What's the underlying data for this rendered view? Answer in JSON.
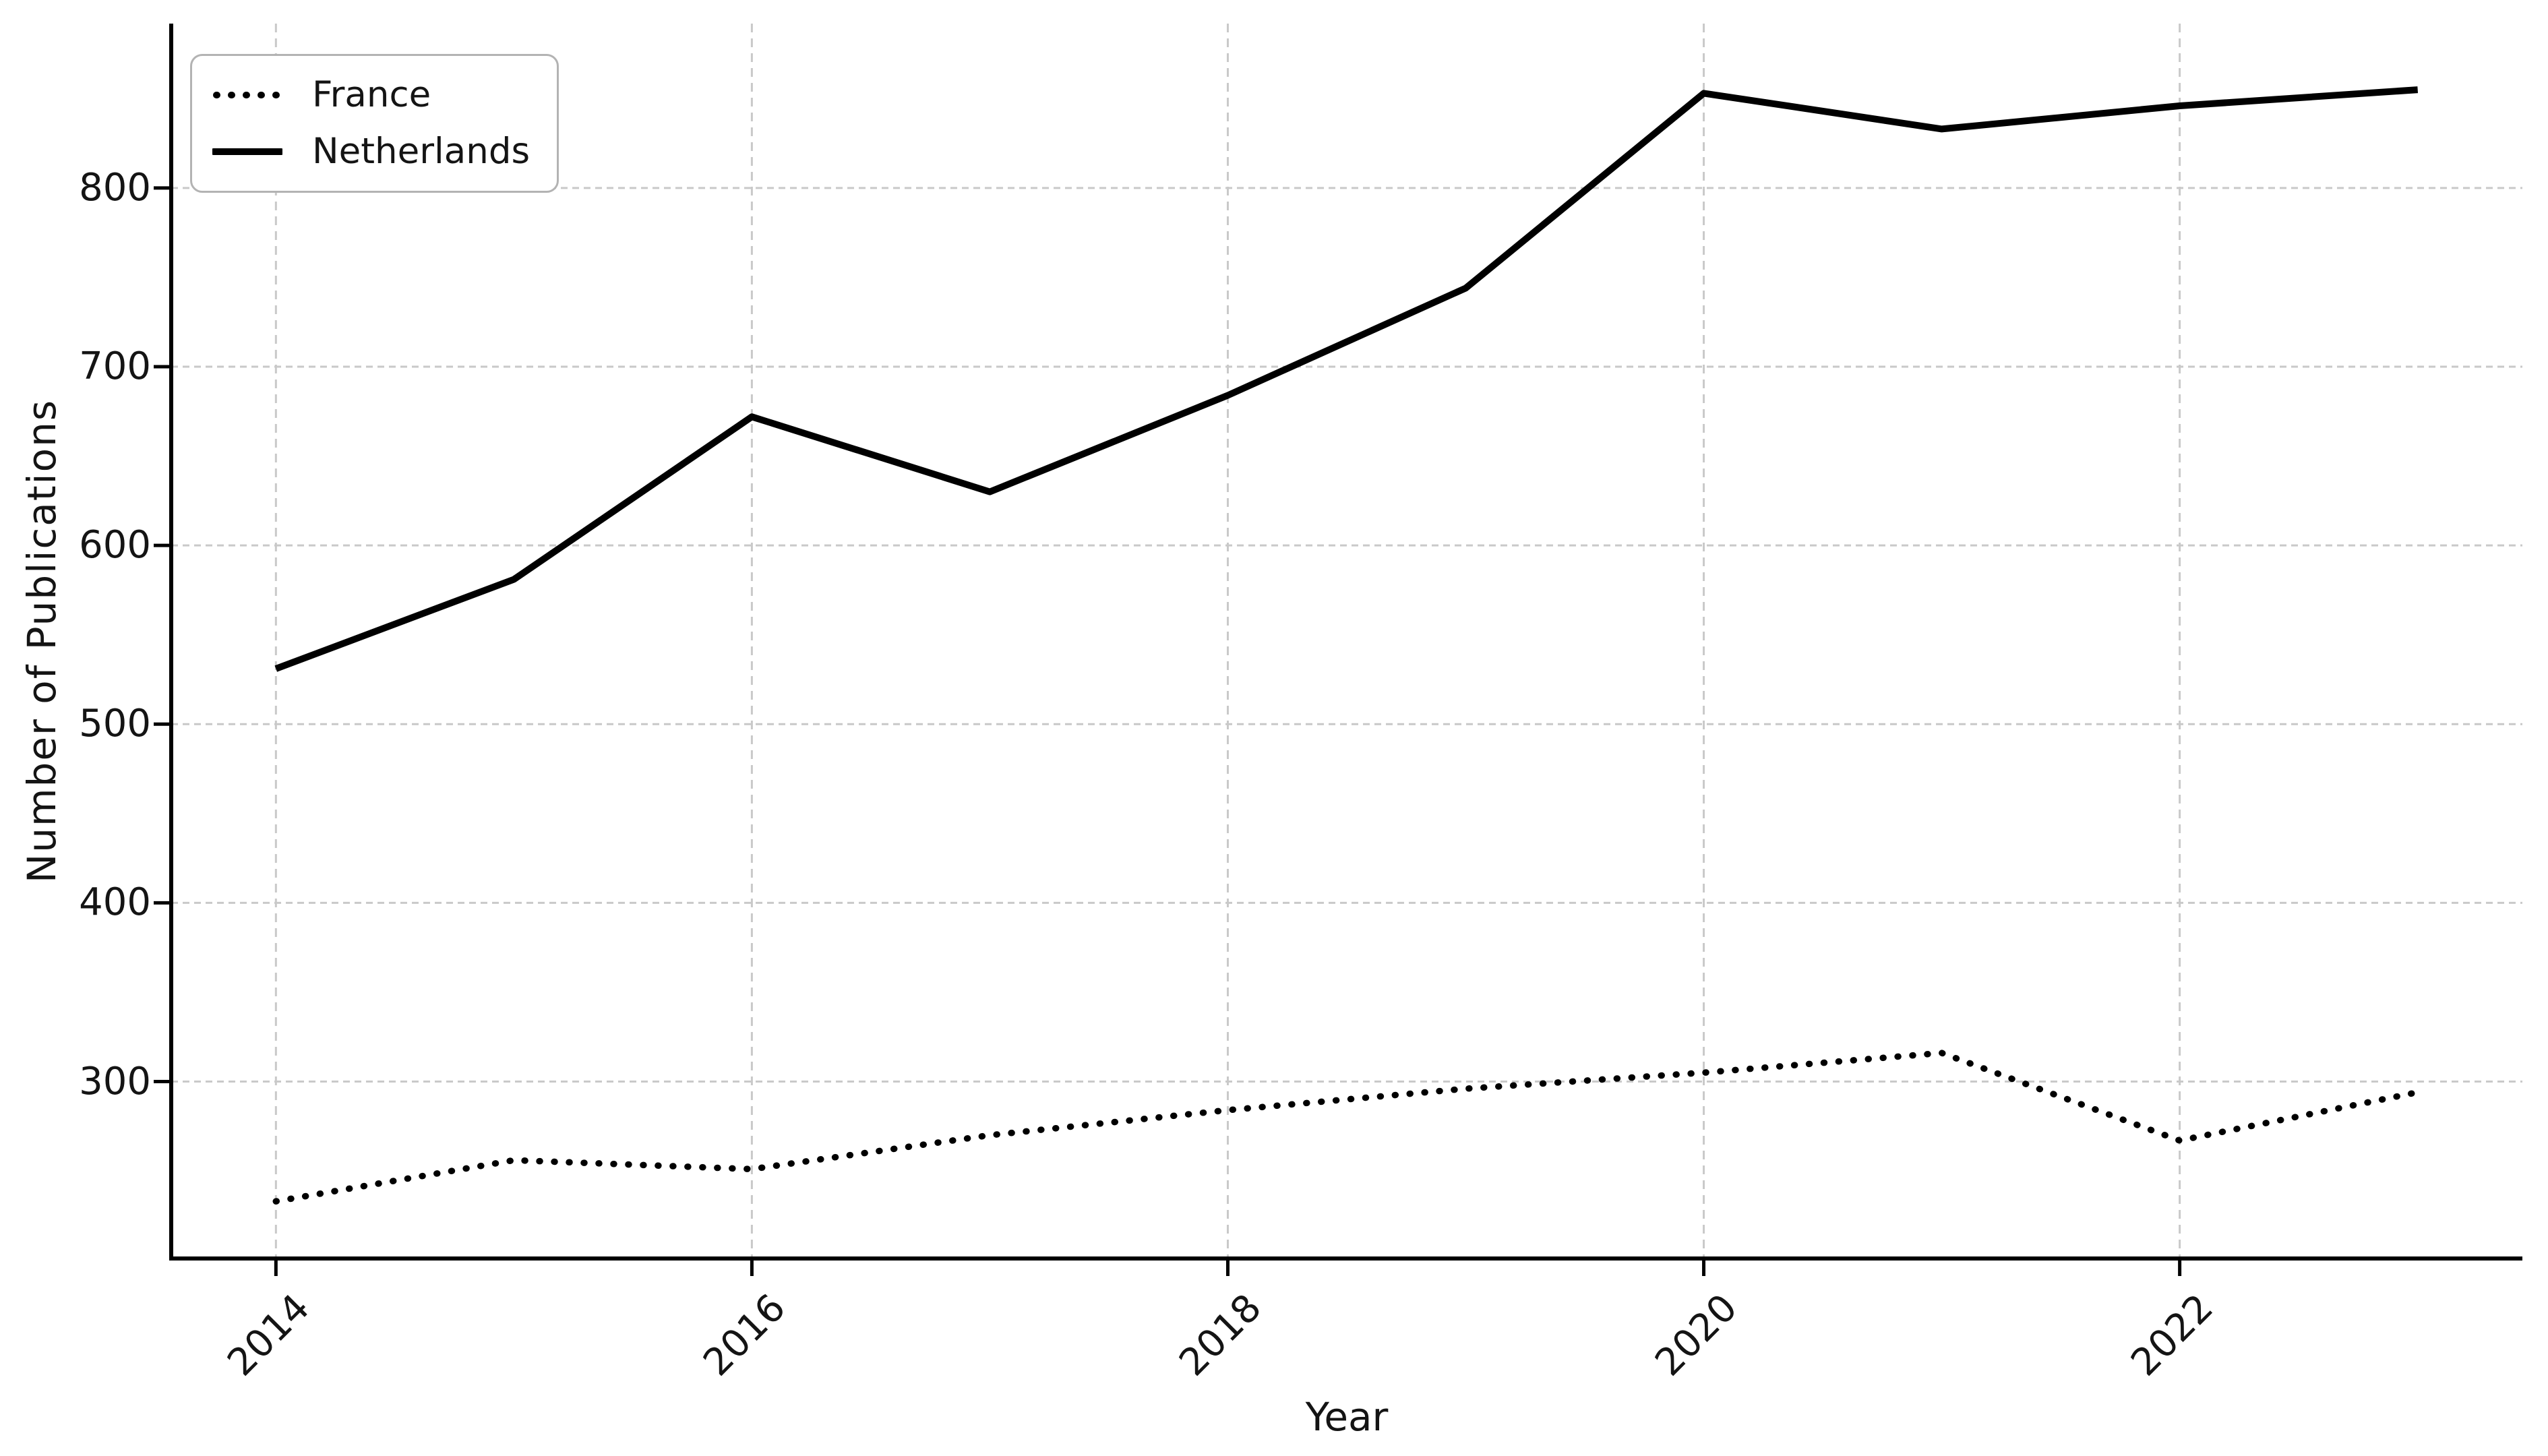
{
  "figure": {
    "background_color": "#ffffff",
    "text_color": "#141414",
    "grid_color": "#c9c9c9",
    "line_color": "#000000"
  },
  "chart_data": {
    "type": "line",
    "title": "",
    "xlabel": "Year",
    "ylabel": "Number of Publications",
    "x": [
      2014,
      2015,
      2016,
      2017,
      2018,
      2019,
      2020,
      2021,
      2022,
      2023
    ],
    "series": [
      {
        "name": "France",
        "linestyle": "dotted",
        "color": "#000000",
        "values": [
          233,
          256,
          251,
          270,
          284,
          296,
          305,
          316,
          267,
          294
        ]
      },
      {
        "name": "Netherlands",
        "linestyle": "solid",
        "color": "#000000",
        "values": [
          531,
          581,
          672,
          630,
          684,
          744,
          853,
          833,
          846,
          855
        ]
      }
    ],
    "x_ticks": [
      2014,
      2016,
      2018,
      2020,
      2022
    ],
    "y_ticks": [
      300,
      400,
      500,
      600,
      700,
      800
    ],
    "xlim": [
      2013.56,
      2023.44
    ],
    "ylim": [
      201,
      892
    ],
    "grid": true,
    "grid_style": "dashed",
    "legend_position": "upper left"
  }
}
